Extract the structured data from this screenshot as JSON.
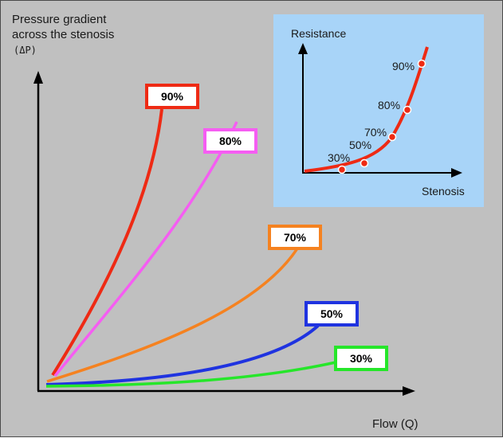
{
  "main_chart": {
    "y_label_lines": [
      "Pressure gradient",
      "across the stenosis"
    ],
    "y_label_symbol": "(ΔP)",
    "x_label": "Flow (Q)",
    "curves": [
      {
        "label": "90%",
        "color": "#ee2a14"
      },
      {
        "label": "80%",
        "color": "#f55df2"
      },
      {
        "label": "70%",
        "color": "#f58220"
      },
      {
        "label": "50%",
        "color": "#1f33e0"
      },
      {
        "label": "30%",
        "color": "#26e62a"
      }
    ]
  },
  "inset": {
    "background": "#a8d4f8",
    "y_label": "Resistance",
    "x_label": "Stenosis",
    "curve_color": "#ee2a14",
    "points": [
      "30%",
      "50%",
      "70%",
      "80%",
      "90%"
    ]
  }
}
